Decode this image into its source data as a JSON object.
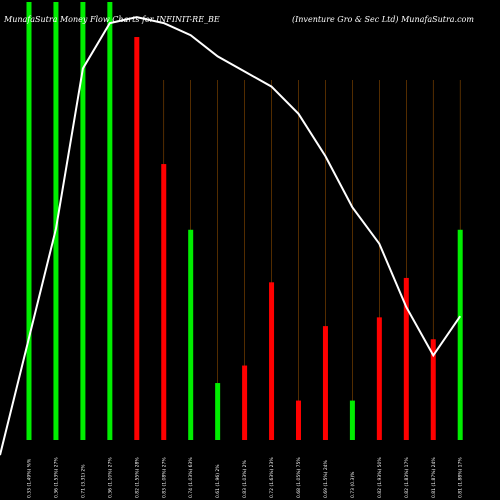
{
  "chart_data": {
    "type": "bar",
    "title": "MunafaSutra  Money Flow  Charts for INFINIT-RE_BE",
    "subtitle": "(Inventure   Gro   & Sec Ltd) MunafaSutra.com",
    "categories": [
      "0.33 (1.49%) %%",
      "0.36 (1.53%) 27%",
      "0.71 (3.31) 2%",
      "0.36 (1.10%) 27%",
      "0.82 (1.55%) 28%",
      "0.83 (1.08%) 27%",
      "0.74 (1.03%) 63%",
      "0.61 (1.96) 2%",
      "0.83 (1.03%) 2%",
      "0.72 (1.63%) 23%",
      "0.68 (1.05%) 75%",
      "0.69 (1.5%) 24%",
      "0.73 (0.3)%",
      "0.82 (1.93%) 50%",
      "0.82 (1.83%) 17%",
      "0.81 (1.87%) 24%",
      "0.81 (1.88%) 17%"
    ],
    "values": [
      100,
      100,
      100,
      100,
      92,
      63,
      48,
      13,
      17,
      36,
      9,
      26,
      9,
      28,
      37,
      23,
      48
    ],
    "colors": [
      "#00ee00",
      "#00ee00",
      "#00ee00",
      "#00ee00",
      "#ff0000",
      "#ff0000",
      "#00ee00",
      "#00ee00",
      "#ff0000",
      "#ff0000",
      "#ff0000",
      "#ff0000",
      "#00ee00",
      "#ff0000",
      "#ff0000",
      "#ff0000",
      "#00ee00"
    ],
    "line_values": [
      -10,
      65,
      118,
      133,
      135,
      133,
      129,
      122,
      117,
      112,
      103,
      89,
      72,
      60,
      39,
      23,
      36
    ],
    "line_color": "#ffffff",
    "ylim": [
      0,
      100
    ],
    "line_ylim": [
      -5,
      140
    ],
    "grid": false
  }
}
